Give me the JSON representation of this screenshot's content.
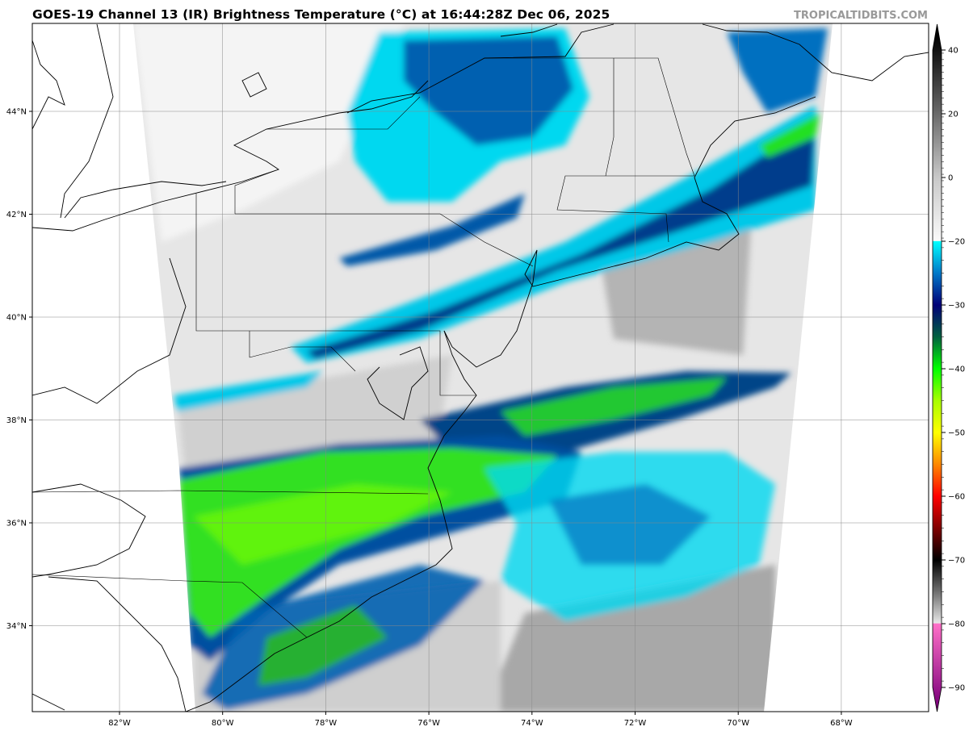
{
  "header": {
    "title": "GOES-19 Channel 13 (IR) Brightness Temperature (°C) at 16:44:28Z Dec 06, 2025",
    "watermark": "TROPICALTIDBITS.COM"
  },
  "map": {
    "longitude_labels": [
      "82°W",
      "80°W",
      "78°W",
      "76°W",
      "74°W",
      "72°W",
      "70°W",
      "68°W"
    ],
    "longitudes": [
      -82,
      -80,
      -78,
      -76,
      -74,
      -72,
      -70,
      -68
    ],
    "latitude_labels": [
      "44°N",
      "42°N",
      "40°N",
      "38°N",
      "36°N",
      "34°N"
    ],
    "latitudes": [
      44,
      42,
      40,
      38,
      36,
      34
    ],
    "grid": true
  },
  "colorbar": {
    "tick_labels": [
      "40",
      "20",
      "0",
      "−20",
      "−30",
      "−40",
      "−50",
      "−60",
      "−70",
      "−80",
      "−90"
    ],
    "tick_values": [
      40,
      20,
      0,
      -20,
      -30,
      -40,
      -50,
      -60,
      -70,
      -80,
      -90
    ],
    "range": [
      -93,
      45
    ],
    "stops": [
      [
        45,
        "#000000"
      ],
      [
        40,
        "#111111"
      ],
      [
        20,
        "#6a6a6a"
      ],
      [
        0,
        "#c8c8c8"
      ],
      [
        -19.9,
        "#fafafa"
      ],
      [
        -20,
        "#00ffff"
      ],
      [
        -25,
        "#0078c8"
      ],
      [
        -30,
        "#000078"
      ],
      [
        -35,
        "#006040"
      ],
      [
        -40,
        "#00ff00"
      ],
      [
        -45,
        "#a8ff00"
      ],
      [
        -50,
        "#ffff00"
      ],
      [
        -55,
        "#ff8800"
      ],
      [
        -60,
        "#ff0000"
      ],
      [
        -65,
        "#800000"
      ],
      [
        -70,
        "#000000"
      ],
      [
        -75,
        "#707070"
      ],
      [
        -79.9,
        "#e6e6e6"
      ],
      [
        -80,
        "#ff70c8"
      ],
      [
        -93,
        "#7a007a"
      ]
    ]
  }
}
